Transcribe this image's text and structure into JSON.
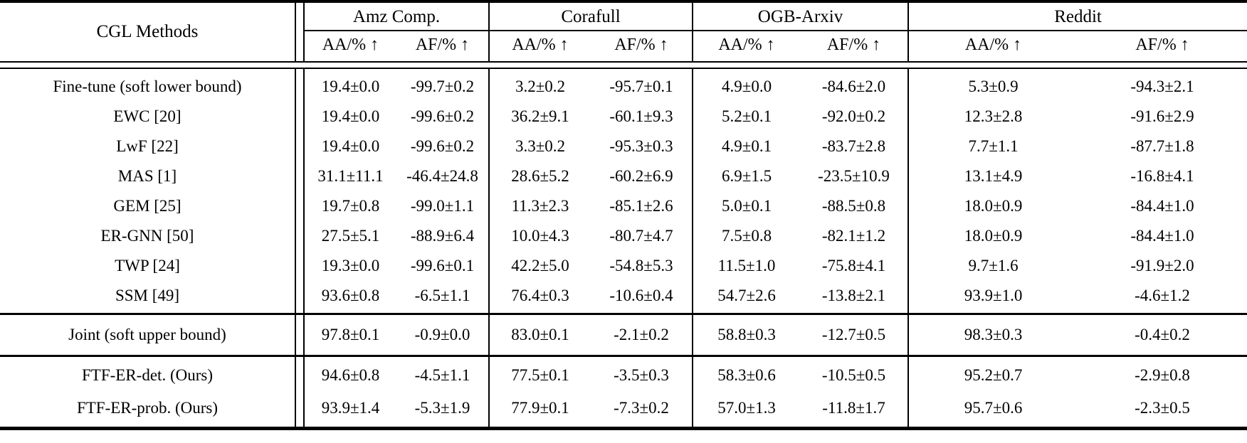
{
  "table": {
    "method_column_header": "CGL Methods",
    "groups": [
      {
        "label": "Amz Comp."
      },
      {
        "label": "Corafull"
      },
      {
        "label": "OGB-Arxiv"
      },
      {
        "label": "Reddit"
      }
    ],
    "metric_headers": [
      "AA/% ↑",
      "AF/% ↑"
    ],
    "up_arrow_icon": "↑",
    "sections": [
      {
        "name": "baselines",
        "rows": [
          {
            "method": "Fine-tune (soft lower bound)",
            "bold_method": false,
            "values": [
              "19.4±0.0",
              "-99.7±0.2",
              "3.2±0.2",
              "-95.7±0.1",
              "4.9±0.0",
              "-84.6±2.0",
              "5.3±0.9",
              "-94.3±2.1"
            ],
            "bold": [
              0,
              0,
              0,
              0,
              0,
              0,
              0,
              0
            ]
          },
          {
            "method": "EWC [20]",
            "bold_method": false,
            "values": [
              "19.4±0.0",
              "-99.6±0.2",
              "36.2±9.1",
              "-60.1±9.3",
              "5.2±0.1",
              "-92.0±0.2",
              "12.3±2.8",
              "-91.6±2.9"
            ],
            "bold": [
              0,
              0,
              0,
              0,
              0,
              0,
              0,
              0
            ]
          },
          {
            "method": "LwF [22]",
            "bold_method": false,
            "values": [
              "19.4±0.0",
              "-99.6±0.2",
              "3.3±0.2",
              "-95.3±0.3",
              "4.9±0.1",
              "-83.7±2.8",
              "7.7±1.1",
              "-87.7±1.8"
            ],
            "bold": [
              0,
              0,
              0,
              0,
              0,
              0,
              0,
              0
            ]
          },
          {
            "method": "MAS [1]",
            "bold_method": false,
            "values": [
              "31.1±11.1",
              "-46.4±24.8",
              "28.6±5.2",
              "-60.2±6.9",
              "6.9±1.5",
              "-23.5±10.9",
              "13.1±4.9",
              "-16.8±4.1"
            ],
            "bold": [
              0,
              0,
              0,
              0,
              0,
              0,
              0,
              0
            ]
          },
          {
            "method": "GEM [25]",
            "bold_method": false,
            "values": [
              "19.7±0.8",
              "-99.0±1.1",
              "11.3±2.3",
              "-85.1±2.6",
              "5.0±0.1",
              "-88.5±0.8",
              "18.0±0.9",
              "-84.4±1.0"
            ],
            "bold": [
              0,
              0,
              0,
              0,
              0,
              0,
              0,
              0
            ]
          },
          {
            "method": "ER-GNN [50]",
            "bold_method": false,
            "values": [
              "27.5±5.1",
              "-88.9±6.4",
              "10.0±4.3",
              "-80.7±4.7",
              "7.5±0.8",
              "-82.1±1.2",
              "18.0±0.9",
              "-84.4±1.0"
            ],
            "bold": [
              0,
              0,
              0,
              0,
              0,
              0,
              0,
              0
            ]
          },
          {
            "method": "TWP [24]",
            "bold_method": false,
            "values": [
              "19.3±0.0",
              "-99.6±0.1",
              "42.2±5.0",
              "-54.8±5.3",
              "11.5±1.0",
              "-75.8±4.1",
              "9.7±1.6",
              "-91.9±2.0"
            ],
            "bold": [
              0,
              0,
              0,
              0,
              0,
              0,
              0,
              0
            ]
          },
          {
            "method": "SSM [49]",
            "bold_method": false,
            "values": [
              "93.6±0.8",
              "-6.5±1.1",
              "76.4±0.3",
              "-10.6±0.4",
              "54.7±2.6",
              "-13.8±2.1",
              "93.9±1.0",
              "-4.6±1.2"
            ],
            "bold": [
              0,
              0,
              0,
              0,
              0,
              0,
              0,
              0
            ]
          }
        ]
      },
      {
        "name": "joint",
        "rows": [
          {
            "method": "Joint (soft upper bound)",
            "bold_method": false,
            "values": [
              "97.8±0.1",
              "-0.9±0.0",
              "83.0±0.1",
              "-2.1±0.2",
              "58.8±0.3",
              "-12.7±0.5",
              "98.3±0.3",
              "-0.4±0.2"
            ],
            "bold": [
              0,
              0,
              0,
              0,
              0,
              0,
              0,
              0
            ]
          }
        ]
      },
      {
        "name": "ours",
        "rows": [
          {
            "method": "FTF-ER-det. (Ours)",
            "bold_method": true,
            "values": [
              "94.6±0.8",
              "-4.5±1.1",
              "77.5±0.1",
              "-3.5±0.3",
              "58.3±0.6",
              "-10.5±0.5",
              "95.2±0.7",
              "-2.9±0.8"
            ],
            "bold": [
              1,
              1,
              0,
              1,
              1,
              1,
              0,
              0
            ]
          },
          {
            "method": "FTF-ER-prob. (Ours)",
            "bold_method": true,
            "values": [
              "93.9±1.4",
              "-5.3±1.9",
              "77.9±0.1",
              "-7.3±0.2",
              "57.0±1.3",
              "-11.8±1.7",
              "95.7±0.6",
              "-2.3±0.5"
            ],
            "bold": [
              0,
              0,
              1,
              0,
              0,
              0,
              1,
              1
            ]
          }
        ]
      }
    ]
  }
}
